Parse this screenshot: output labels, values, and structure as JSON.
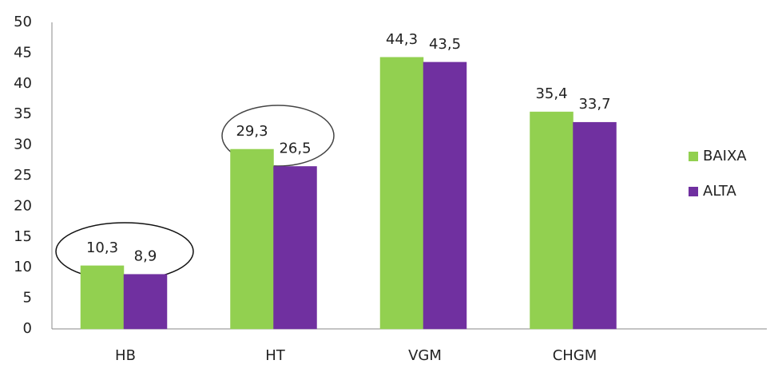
{
  "chart_data": {
    "type": "bar",
    "categories": [
      "HB",
      "HT",
      "VGM",
      "CHGM"
    ],
    "series": [
      {
        "name": "BAIXA",
        "color": "#92d050",
        "values": [
          10.3,
          29.3,
          44.3,
          35.4
        ],
        "value_labels": [
          "10,3",
          "29,3",
          "44,3",
          "35,4"
        ]
      },
      {
        "name": "ALTA",
        "color": "#7030a0",
        "values": [
          8.9,
          26.5,
          43.5,
          33.7
        ],
        "value_labels": [
          "8,9",
          "26,5",
          "43,5",
          "33,7"
        ]
      }
    ],
    "ylim": [
      0,
      50
    ],
    "yticks": [
      0,
      5,
      10,
      15,
      20,
      25,
      30,
      35,
      40,
      45,
      50
    ],
    "grid": false,
    "legend": "right"
  }
}
